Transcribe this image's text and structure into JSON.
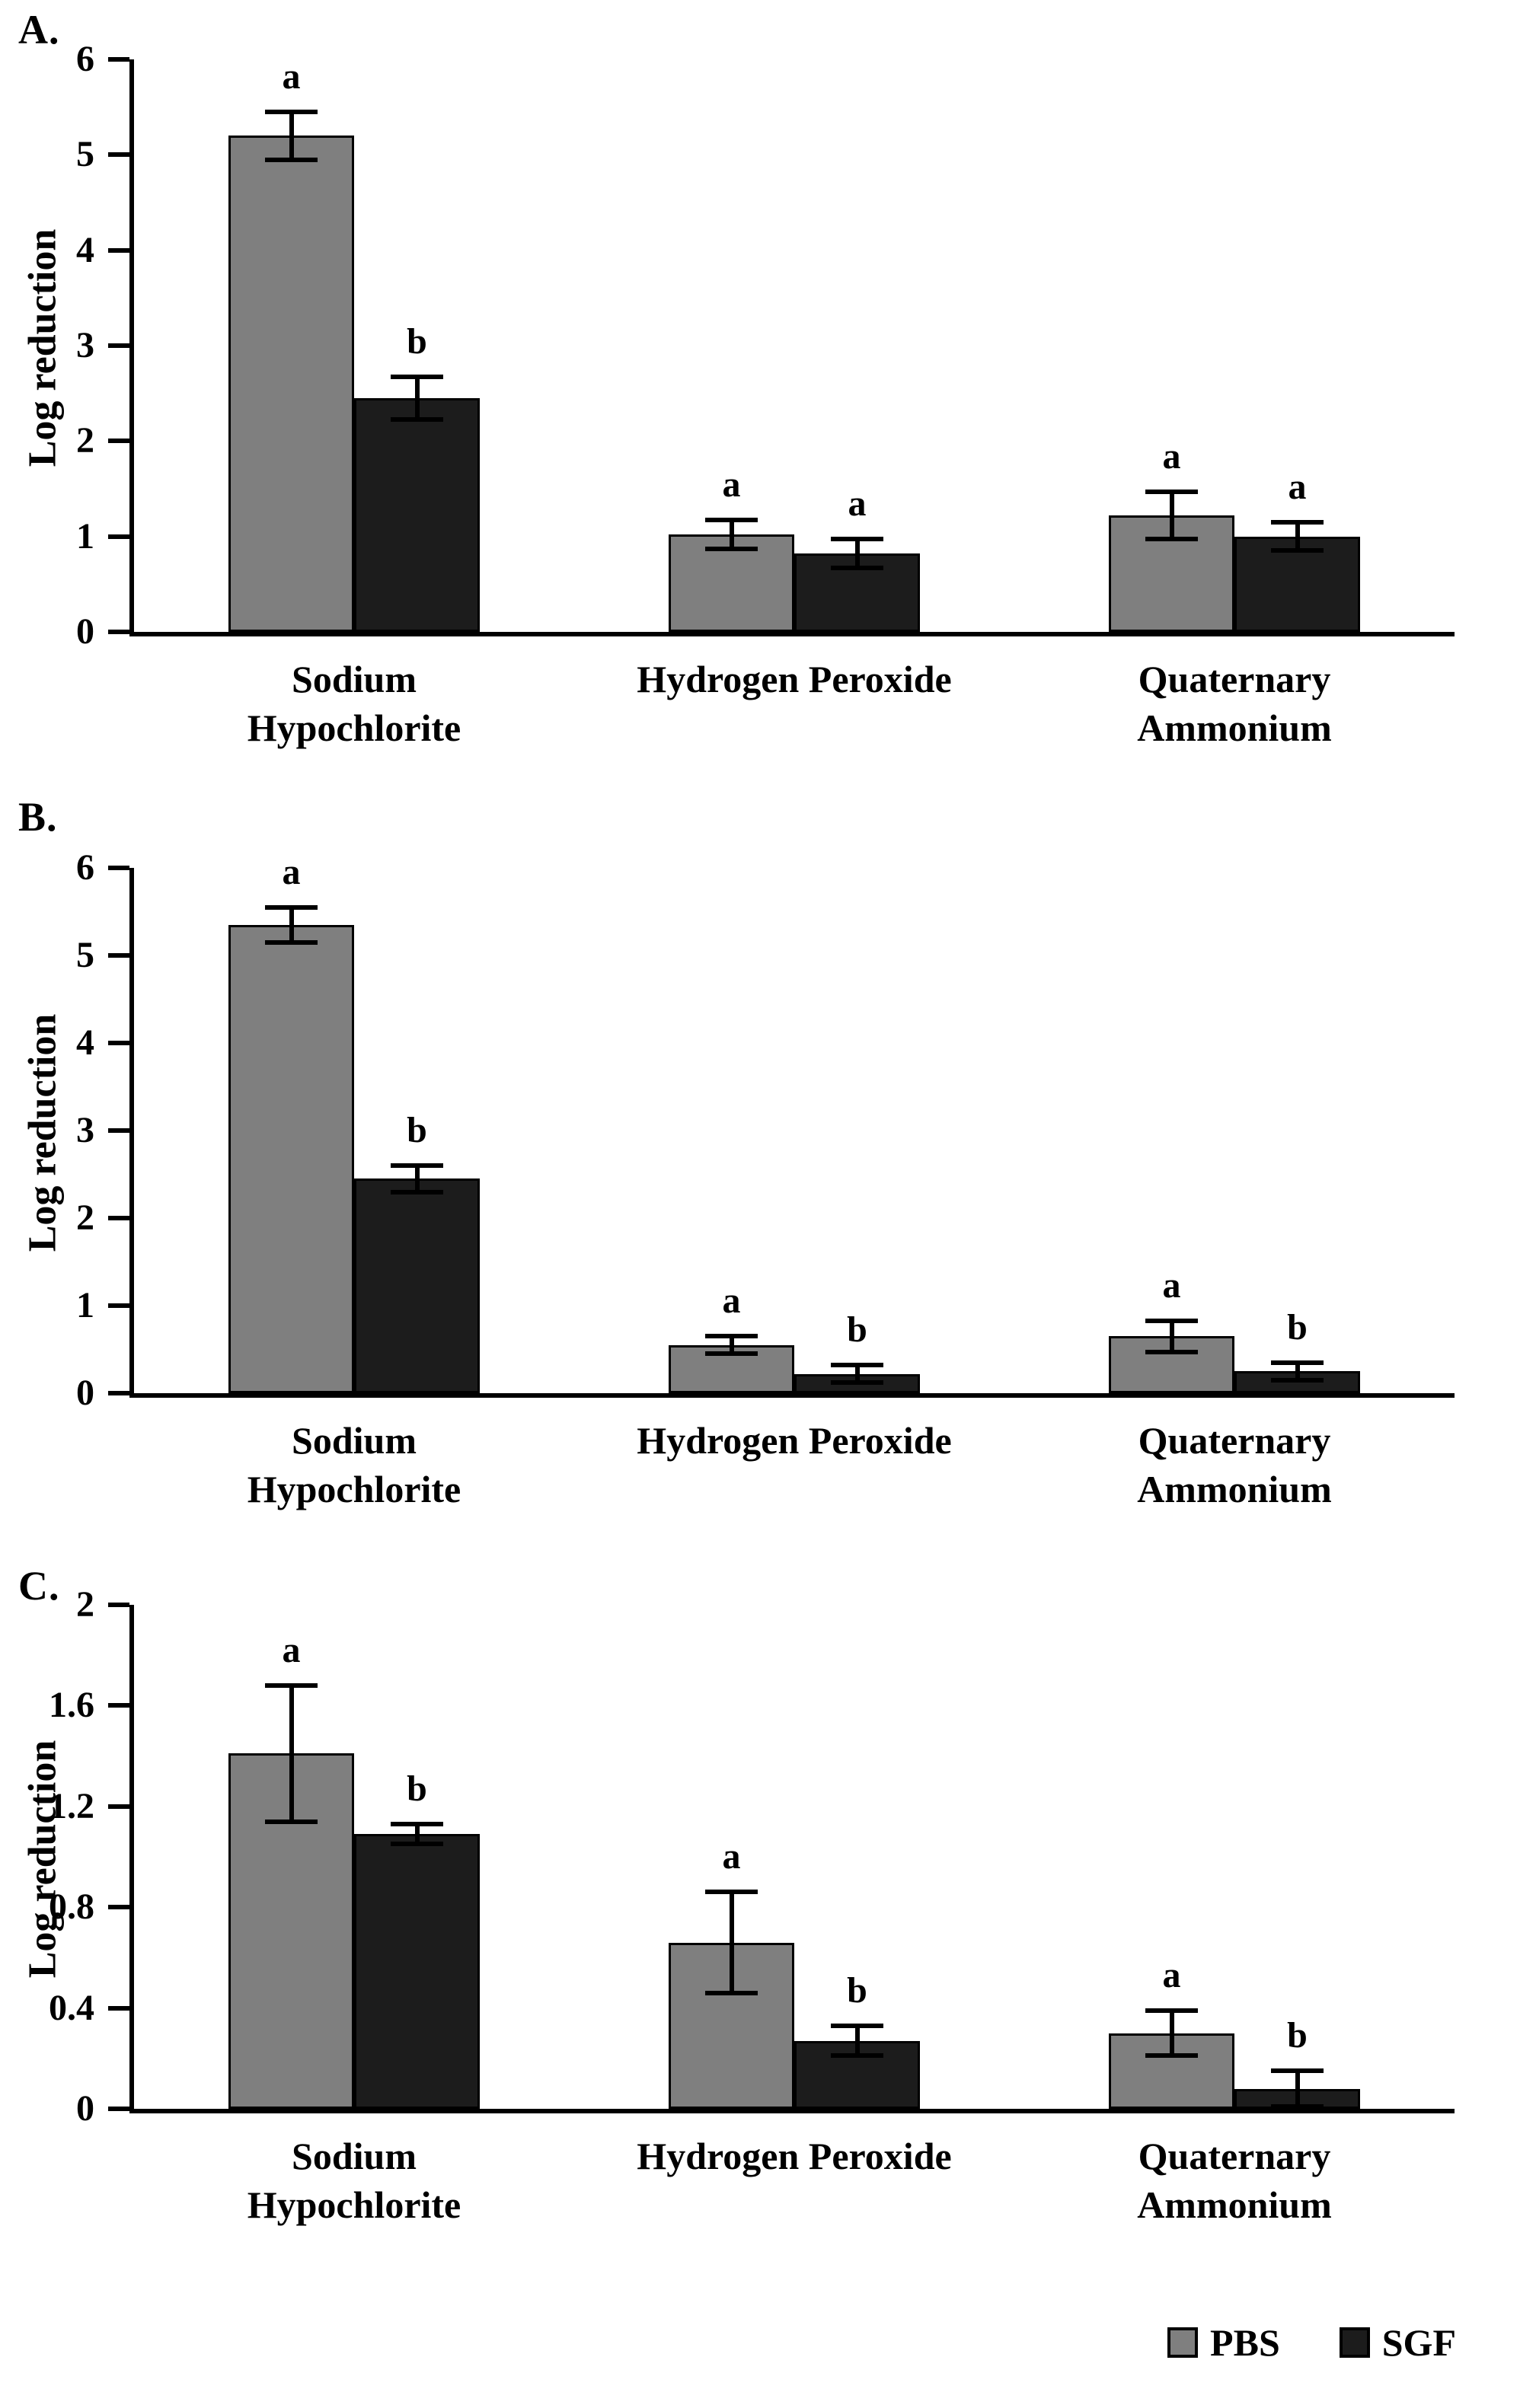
{
  "figure": {
    "background": "#ffffff",
    "legend": [
      {
        "label": "PBS",
        "color": "#7f7f7f"
      },
      {
        "label": "SGF",
        "color": "#1c1c1c"
      }
    ]
  },
  "chart_data": [
    {
      "type": "bar",
      "panel_label": "A.",
      "ylabel": "Log reduction",
      "ylim": [
        0,
        6
      ],
      "yticks": [
        "0",
        "1",
        "2",
        "3",
        "4",
        "5",
        "6"
      ],
      "grid": false,
      "categories": [
        "Sodium\nHypochlorite",
        "Hydrogen Peroxide",
        "Quaternary\nAmmonium"
      ],
      "series": [
        {
          "name": "PBS",
          "color": "#7f7f7f",
          "values": [
            5.2,
            1.02,
            1.22
          ],
          "errors": [
            0.25,
            0.15,
            0.25
          ],
          "sig_letters": [
            "a",
            "a",
            "a"
          ]
        },
        {
          "name": "SGF",
          "color": "#1c1c1c",
          "values": [
            2.45,
            0.82,
            1.0
          ],
          "errors": [
            0.22,
            0.15,
            0.15
          ],
          "sig_letters": [
            "b",
            "a",
            "a"
          ]
        }
      ]
    },
    {
      "type": "bar",
      "panel_label": "B.",
      "ylabel": "Log reduction",
      "ylim": [
        0,
        6
      ],
      "yticks": [
        "0",
        "1",
        "2",
        "3",
        "4",
        "5",
        "6"
      ],
      "grid": false,
      "categories": [
        "Sodium\nHypochlorite",
        "Hydrogen Peroxide",
        "Quaternary\nAmmonium"
      ],
      "series": [
        {
          "name": "PBS",
          "color": "#7f7f7f",
          "values": [
            5.35,
            0.55,
            0.65
          ],
          "errors": [
            0.2,
            0.1,
            0.18
          ],
          "sig_letters": [
            "a",
            "a",
            "a"
          ]
        },
        {
          "name": "SGF",
          "color": "#1c1c1c",
          "values": [
            2.45,
            0.22,
            0.25
          ],
          "errors": [
            0.15,
            0.1,
            0.1
          ],
          "sig_letters": [
            "b",
            "b",
            "b"
          ]
        }
      ]
    },
    {
      "type": "bar",
      "panel_label": "C.",
      "ylabel": "Log reduction",
      "ylim": [
        0,
        2
      ],
      "yticks": [
        "0",
        "0.4",
        "0.8",
        "1.2",
        "1.6",
        "2"
      ],
      "grid": false,
      "categories": [
        "Sodium\nHypochlorite",
        "Hydrogen Peroxide",
        "Quaternary\nAmmonium"
      ],
      "series": [
        {
          "name": "PBS",
          "color": "#7f7f7f",
          "values": [
            1.41,
            0.66,
            0.3
          ],
          "errors": [
            0.27,
            0.2,
            0.09
          ],
          "sig_letters": [
            "a",
            "a",
            "a"
          ]
        },
        {
          "name": "SGF",
          "color": "#1c1c1c",
          "values": [
            1.09,
            0.27,
            0.08
          ],
          "errors": [
            0.04,
            0.06,
            0.07
          ],
          "sig_letters": [
            "b",
            "b",
            "b"
          ]
        }
      ]
    }
  ]
}
